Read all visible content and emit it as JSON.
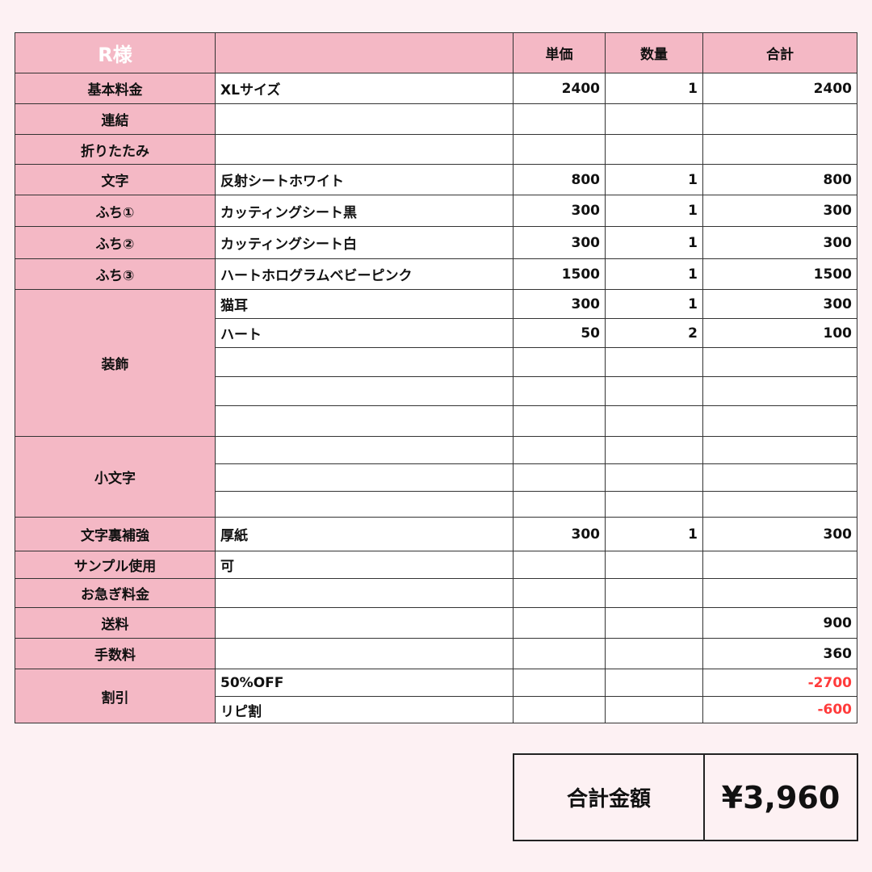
{
  "header": {
    "customer": "R様",
    "col_desc": "",
    "col_price": "単価",
    "col_qty": "数量",
    "col_total": "合計"
  },
  "groups": [
    {
      "label": "基本料金",
      "items": [
        {
          "desc": "XLサイズ",
          "price": "2400",
          "qty": "1",
          "total": "2400"
        }
      ]
    },
    {
      "label": "連結",
      "items": [
        {
          "desc": "",
          "price": "",
          "qty": "",
          "total": ""
        }
      ]
    },
    {
      "label": "折りたたみ",
      "items": [
        {
          "desc": "",
          "price": "",
          "qty": "",
          "total": ""
        }
      ]
    },
    {
      "label": "文字",
      "items": [
        {
          "desc": "反射シートホワイト",
          "price": "800",
          "qty": "1",
          "total": "800"
        }
      ]
    },
    {
      "label": "ふち①",
      "items": [
        {
          "desc": "カッティングシート黒",
          "price": "300",
          "qty": "1",
          "total": "300"
        }
      ]
    },
    {
      "label": "ふち②",
      "items": [
        {
          "desc": "カッティングシート白",
          "price": "300",
          "qty": "1",
          "total": "300"
        }
      ]
    },
    {
      "label": "ふち③",
      "items": [
        {
          "desc": "ハートホログラムベビーピンク",
          "price": "1500",
          "qty": "1",
          "total": "1500"
        }
      ]
    },
    {
      "label": "装飾",
      "items": [
        {
          "desc": "猫耳",
          "price": "300",
          "qty": "1",
          "total": "300"
        },
        {
          "desc": "ハート",
          "price": "50",
          "qty": "2",
          "total": "100"
        },
        {
          "desc": "",
          "price": "",
          "qty": "",
          "total": ""
        },
        {
          "desc": "",
          "price": "",
          "qty": "",
          "total": ""
        },
        {
          "desc": "",
          "price": "",
          "qty": "",
          "total": ""
        }
      ]
    },
    {
      "label": "小文字",
      "items": [
        {
          "desc": "",
          "price": "",
          "qty": "",
          "total": ""
        },
        {
          "desc": "",
          "price": "",
          "qty": "",
          "total": ""
        },
        {
          "desc": "",
          "price": "",
          "qty": "",
          "total": ""
        }
      ]
    },
    {
      "label": "文字裏補強",
      "items": [
        {
          "desc": "厚紙",
          "price": "300",
          "qty": "1",
          "total": "300"
        }
      ]
    },
    {
      "label": "サンプル使用",
      "items": [
        {
          "desc": "可",
          "price": "",
          "qty": "",
          "total": ""
        }
      ]
    },
    {
      "label": "お急ぎ料金",
      "items": [
        {
          "desc": "",
          "price": "",
          "qty": "",
          "total": ""
        }
      ]
    },
    {
      "label": "送料",
      "items": [
        {
          "desc": "",
          "price": "",
          "qty": "",
          "total": "900"
        }
      ]
    },
    {
      "label": "手数料",
      "items": [
        {
          "desc": "",
          "price": "",
          "qty": "",
          "total": "360"
        }
      ]
    },
    {
      "label": "割引",
      "items": [
        {
          "desc": "50%OFF",
          "price": "",
          "qty": "",
          "total": "-2700",
          "negative": true
        },
        {
          "desc": "リピ割",
          "price": "",
          "qty": "",
          "total": "-600",
          "negative": true
        }
      ]
    }
  ],
  "summary": {
    "label": "合計金額",
    "value": "¥3,960"
  },
  "colors": {
    "label_bg": "#f4b8c5",
    "negative": "#ff3b3b",
    "page_bg": "#fdf1f3"
  }
}
